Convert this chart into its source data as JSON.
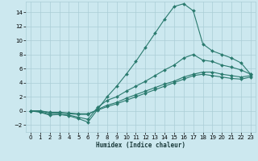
{
  "title": "",
  "xlabel": "Humidex (Indice chaleur)",
  "bg_color": "#cce8ef",
  "grid_color": "#aacdd6",
  "line_color": "#2a7a6e",
  "xlim": [
    -0.5,
    23.5
  ],
  "ylim": [
    -3,
    15.5
  ],
  "xticks": [
    0,
    1,
    2,
    3,
    4,
    5,
    6,
    7,
    8,
    9,
    10,
    11,
    12,
    13,
    14,
    15,
    16,
    17,
    18,
    19,
    20,
    21,
    22,
    23
  ],
  "yticks": [
    -2,
    0,
    2,
    4,
    6,
    8,
    10,
    12,
    14
  ],
  "lines": [
    {
      "x": [
        0,
        1,
        2,
        3,
        4,
        5,
        6,
        7,
        8,
        9,
        10,
        11,
        12,
        13,
        14,
        15,
        16,
        17,
        18,
        19,
        20,
        21,
        22,
        23
      ],
      "y": [
        0,
        -0.2,
        -0.6,
        -0.5,
        -0.7,
        -1.1,
        -1.6,
        0.2,
        2.0,
        3.5,
        5.2,
        7.0,
        9.0,
        11.0,
        13.0,
        14.8,
        15.2,
        14.2,
        9.5,
        8.5,
        8.0,
        7.5,
        6.8,
        5.2
      ]
    },
    {
      "x": [
        0,
        1,
        2,
        3,
        4,
        5,
        6,
        7,
        8,
        9,
        10,
        11,
        12,
        13,
        14,
        15,
        16,
        17,
        18,
        19,
        20,
        21,
        22,
        23
      ],
      "y": [
        0,
        -0.1,
        -0.5,
        -0.5,
        -0.6,
        -0.9,
        -1.2,
        0.5,
        1.5,
        2.0,
        2.8,
        3.5,
        4.2,
        5.0,
        5.8,
        6.5,
        7.5,
        8.0,
        7.2,
        7.0,
        6.5,
        6.2,
        5.8,
        5.2
      ]
    },
    {
      "x": [
        0,
        1,
        2,
        3,
        4,
        5,
        6,
        7,
        8,
        9,
        10,
        11,
        12,
        13,
        14,
        15,
        16,
        17,
        18,
        19,
        20,
        21,
        22,
        23
      ],
      "y": [
        0,
        0.0,
        -0.3,
        -0.3,
        -0.4,
        -0.5,
        -0.5,
        0.2,
        0.8,
        1.2,
        1.8,
        2.3,
        2.8,
        3.3,
        3.8,
        4.2,
        4.8,
        5.2,
        5.5,
        5.5,
        5.2,
        5.0,
        4.8,
        5.0
      ]
    },
    {
      "x": [
        0,
        1,
        2,
        3,
        4,
        5,
        6,
        7,
        8,
        9,
        10,
        11,
        12,
        13,
        14,
        15,
        16,
        17,
        18,
        19,
        20,
        21,
        22,
        23
      ],
      "y": [
        0,
        0.0,
        -0.2,
        -0.2,
        -0.3,
        -0.4,
        -0.4,
        0.1,
        0.6,
        1.0,
        1.5,
        2.0,
        2.5,
        3.0,
        3.5,
        4.0,
        4.5,
        5.0,
        5.2,
        5.0,
        4.8,
        4.6,
        4.5,
        4.8
      ]
    }
  ]
}
